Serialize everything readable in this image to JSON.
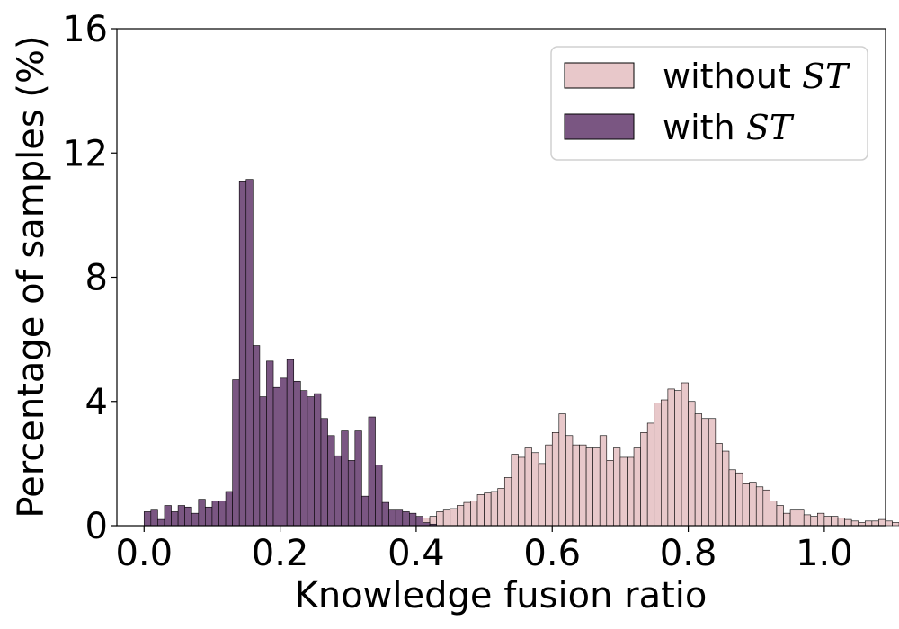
{
  "chart_data": {
    "type": "bar",
    "title": "",
    "xlabel": "Knowledge fusion ratio",
    "ylabel": "Percentage of samples (%)",
    "xlim": [
      -0.04,
      1.09
    ],
    "ylim": [
      0,
      16
    ],
    "x_ticks": [
      0.0,
      0.2,
      0.4,
      0.6,
      0.8,
      1.0
    ],
    "x_tick_labels": [
      "0.0",
      "0.2",
      "0.4",
      "0.6",
      "0.8",
      "1.0"
    ],
    "y_ticks": [
      0,
      4,
      8,
      12,
      16
    ],
    "y_tick_labels": [
      "0",
      "4",
      "8",
      "12",
      "16"
    ],
    "bin_width": 0.01,
    "grid": false,
    "legend": {
      "placement": "top-right"
    },
    "series": [
      {
        "name": "without ST",
        "legend_prefix": "without ",
        "legend_math": "ST",
        "color": "#e8c8ca",
        "bin_start": 0.16,
        "values": [
          0.05,
          0.05,
          0.05,
          0.05,
          0.1,
          0.1,
          0.1,
          0.1,
          0.1,
          0.1,
          0.1,
          0.1,
          0.1,
          0.05,
          0.05,
          0.1,
          0.1,
          0.1,
          0.05,
          0.05,
          0.05,
          0.2,
          0.1,
          0.25,
          0.2,
          0.25,
          0.3,
          0.45,
          0.5,
          0.55,
          0.65,
          0.75,
          0.8,
          1.0,
          1.05,
          1.1,
          1.2,
          1.55,
          2.3,
          2.2,
          2.5,
          2.35,
          2.0,
          2.6,
          3.0,
          3.6,
          2.9,
          2.6,
          2.6,
          2.5,
          2.5,
          2.9,
          2.1,
          2.5,
          2.2,
          2.2,
          2.5,
          3.0,
          3.3,
          3.95,
          4.05,
          4.4,
          4.35,
          4.6,
          4.0,
          3.6,
          3.45,
          3.45,
          2.65,
          2.4,
          1.8,
          1.7,
          1.35,
          1.4,
          1.25,
          1.15,
          0.8,
          0.65,
          0.4,
          0.5,
          0.5,
          0.35,
          0.3,
          0.4,
          0.3,
          0.3,
          0.25,
          0.2,
          0.15,
          0.1,
          0.15,
          0.15,
          0.2,
          0.15,
          0.1,
          0.1,
          0.15,
          0.05,
          0.1,
          0.05
        ]
      },
      {
        "name": "with ST",
        "legend_prefix": "with ",
        "legend_math": "ST",
        "color": "#7a5682",
        "bin_start": 0.0,
        "values": [
          0.45,
          0.5,
          0.2,
          0.65,
          0.45,
          0.65,
          0.6,
          0.4,
          0.85,
          0.6,
          0.8,
          0.8,
          1.1,
          4.7,
          11.1,
          11.15,
          5.8,
          4.15,
          5.3,
          4.45,
          4.75,
          5.35,
          4.65,
          4.35,
          4.15,
          4.25,
          3.45,
          2.9,
          2.25,
          3.05,
          2.1,
          3.05,
          0.95,
          3.5,
          1.95,
          0.75,
          0.5,
          0.5,
          0.45,
          0.4,
          0.3,
          0.1,
          0.05
        ]
      }
    ]
  }
}
